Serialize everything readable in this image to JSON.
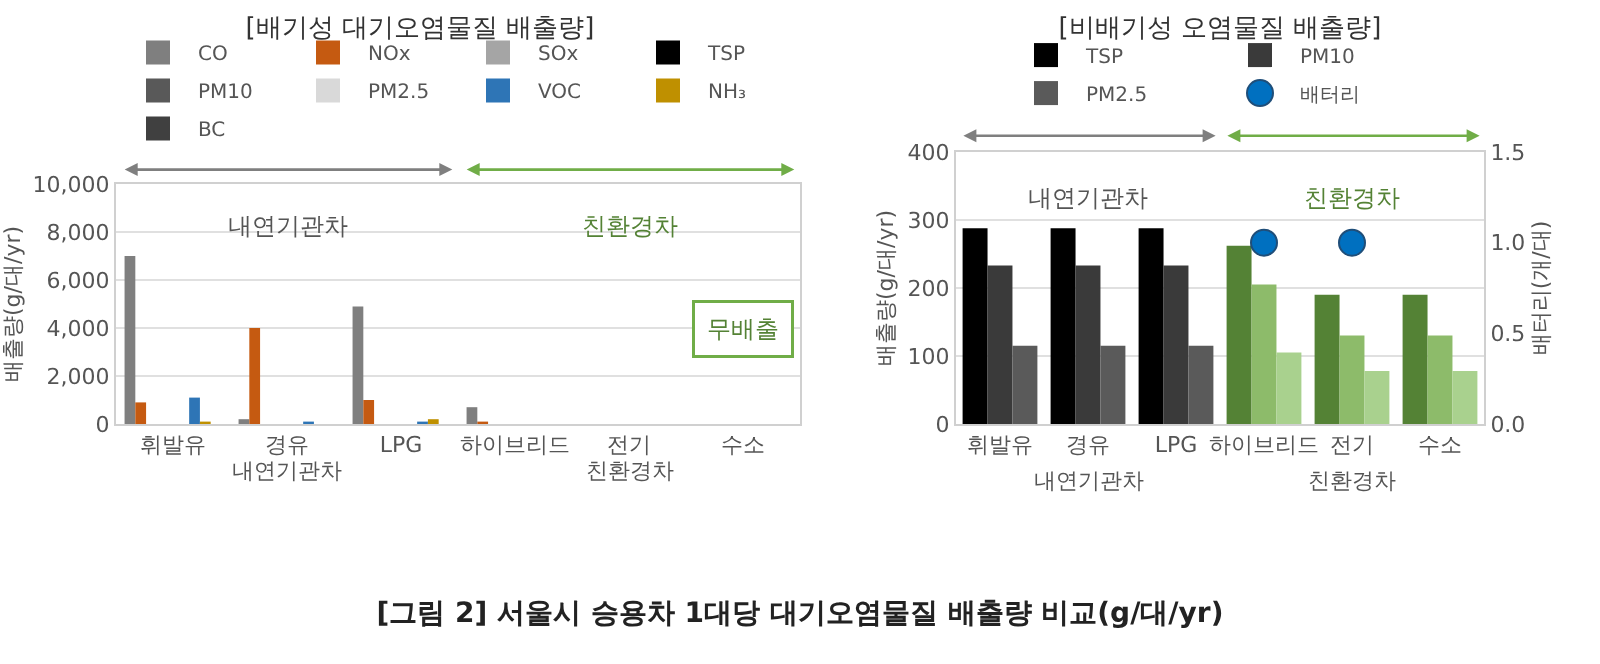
{
  "chart_data": [
    {
      "type": "bar",
      "title": "[배기성 대기오염물질 배출량]",
      "ylabel": "배출량(g/대/yr)",
      "categories": [
        "휘발유",
        "경유",
        "LPG",
        "하이브리드",
        "전기",
        "수소"
      ],
      "ylim": [
        0,
        10000
      ],
      "yticks": [
        0,
        {
          "value": 2000,
          "label": "2,000"
        },
        {
          "value": 4000,
          "label": "4,000"
        },
        {
          "value": 6000,
          "label": "6,000"
        },
        {
          "value": 8000,
          "label": "8,000"
        },
        {
          "value": 10000,
          "label": "10,000"
        }
      ],
      "grid": "y",
      "legend": "top",
      "series": [
        {
          "name": "CO",
          "color": "#7f7f7f",
          "values": [
            7000,
            200,
            4900,
            700,
            0,
            0
          ]
        },
        {
          "name": "NOx",
          "color": "#c55a11",
          "values": [
            900,
            4000,
            1000,
            100,
            0,
            0
          ]
        },
        {
          "name": "SOx",
          "color": "#a5a5a5",
          "values": [
            0,
            0,
            0,
            0,
            0,
            0
          ]
        },
        {
          "name": "TSP",
          "color": "#000000",
          "values": [
            0,
            0,
            0,
            0,
            0,
            0
          ]
        },
        {
          "name": "PM10",
          "color": "#595959",
          "values": [
            0,
            0,
            0,
            0,
            0,
            0
          ]
        },
        {
          "name": "PM2.5",
          "color": "#d9d9d9",
          "values": [
            0,
            0,
            0,
            0,
            0,
            0
          ]
        },
        {
          "name": "VOC",
          "color": "#2e75b6",
          "values": [
            1100,
            100,
            100,
            0,
            0,
            0
          ]
        },
        {
          "name": "NH₃",
          "color": "#bf9000",
          "values": [
            100,
            0,
            200,
            0,
            0,
            0
          ]
        },
        {
          "name": "BC",
          "color": "#404040",
          "values": [
            0,
            0,
            0,
            0,
            0,
            0
          ]
        }
      ],
      "annotations": [
        "내연기관차",
        "친환경차",
        "내연기관차",
        "친환경차",
        "무배출",
        "[그림 2] 서울시 승용차 1대당 대기오염물질 배출량 비교(g/대/yr)"
      ]
    },
    {
      "type": "bar",
      "title": "[비배기성 오염물질 배출량]",
      "ylabel": "배출량(g/대/yr)",
      "y2label": "배터리(개/대)",
      "categories": [
        "휘발유",
        "경유",
        "LPG",
        "하이브리드",
        "전기",
        "수소"
      ],
      "ylim": [
        0,
        400
      ],
      "yticks": [
        0,
        100,
        200,
        300,
        400
      ],
      "y2lim": [
        0,
        1.5
      ],
      "y2ticks": [
        {
          "value": 0,
          "label": "0.0"
        },
        0.5,
        {
          "value": 1,
          "label": "1.0"
        },
        1.5
      ],
      "grid": "y",
      "legend": "top",
      "marker": "circle",
      "series": [
        {
          "name": "TSP",
          "colors": [
            "#000000",
            "#000000",
            "#000000",
            "#548235",
            "#548235",
            "#548235"
          ],
          "values": [
            288,
            288,
            288,
            262,
            190,
            190
          ]
        },
        {
          "name": "PM10",
          "colors": [
            "#3a3a3a",
            "#3a3a3a",
            "#3a3a3a",
            "#8dbb6a",
            "#8dbb6a",
            "#8dbb6a"
          ],
          "values": [
            233,
            233,
            233,
            205,
            130,
            130
          ]
        },
        {
          "name": "PM2.5",
          "colors": [
            "#5a5a5a",
            "#5a5a5a",
            "#5a5a5a",
            "#a9d18e",
            "#a9d18e",
            "#a9d18e"
          ],
          "values": [
            115,
            115,
            115,
            105,
            78,
            78
          ]
        },
        {
          "name": "배터리",
          "type": "scatter",
          "axis": "y2",
          "color": "#0070c0",
          "x": [
            "하이브리드",
            "전기"
          ],
          "values": [
            1,
            1
          ]
        }
      ],
      "annotations": [
        "내연기관차",
        "친환경차",
        "내연기관차",
        "친환경차"
      ]
    }
  ]
}
